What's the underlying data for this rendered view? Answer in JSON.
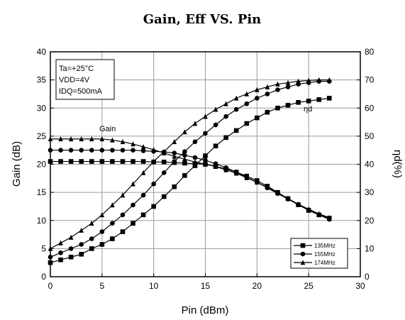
{
  "chart_data": {
    "type": "line",
    "title": "Gain, Eff VS. Pin",
    "xlabel": "Pin (dBm)",
    "ylabel_left": "Gain (dB)",
    "ylabel_right": "ηd(%)",
    "xlim": [
      0,
      30
    ],
    "ylim_left": [
      0,
      40
    ],
    "ylim_right": [
      0,
      80
    ],
    "x_ticks": [
      "0",
      "5",
      "10",
      "15",
      "20",
      "25",
      "30"
    ],
    "y_left_ticks": [
      "0",
      "5",
      "10",
      "15",
      "20",
      "25",
      "30",
      "35",
      "40"
    ],
    "y_right_ticks": [
      "0",
      "10",
      "20",
      "30",
      "40",
      "50",
      "60",
      "70",
      "80"
    ],
    "grid": true,
    "legend_position": "bottom-right",
    "conditions": [
      "Ta=+25°C",
      "VDD=4V",
      "IDQ=500mA"
    ],
    "annotations": {
      "gain": "Gain",
      "eff": "ηd"
    },
    "x": [
      0,
      1,
      2,
      3,
      4,
      5,
      6,
      7,
      8,
      9,
      10,
      11,
      12,
      13,
      14,
      15,
      16,
      17,
      18,
      19,
      20,
      21,
      22,
      23,
      24,
      25,
      26,
      27
    ],
    "series": [
      {
        "name": "135MHz",
        "marker": "square",
        "gain_db": [
          20.5,
          20.5,
          20.5,
          20.5,
          20.5,
          20.5,
          20.5,
          20.5,
          20.5,
          20.5,
          20.4,
          20.4,
          20.3,
          20.2,
          20.1,
          20.0,
          19.6,
          19.2,
          18.6,
          17.9,
          17.1,
          16.1,
          15.0,
          13.9,
          12.8,
          11.8,
          11.0,
          10.4
        ],
        "eff_pct": [
          5,
          6,
          7,
          8,
          10,
          11.5,
          13.5,
          16,
          19,
          22,
          25,
          28.5,
          32,
          36,
          39.5,
          43,
          46.5,
          49.5,
          52,
          54.5,
          56.5,
          58.5,
          60,
          61,
          62,
          62.5,
          63,
          63.5
        ]
      },
      {
        "name": "155MHz",
        "marker": "circle",
        "gain_db": [
          22.5,
          22.5,
          22.5,
          22.5,
          22.5,
          22.5,
          22.5,
          22.5,
          22.5,
          22.4,
          22.3,
          22.2,
          22.0,
          21.6,
          21.2,
          20.7,
          20.1,
          19.4,
          18.6,
          17.7,
          16.8,
          15.8,
          14.8,
          13.8,
          12.8,
          11.9,
          11.0,
          10.2
        ],
        "eff_pct": [
          7,
          8.5,
          10,
          11.5,
          13.5,
          16,
          19,
          22,
          25.5,
          29,
          33,
          37,
          41,
          44.5,
          48,
          51,
          54,
          57,
          59.5,
          61.5,
          63.5,
          65,
          66.5,
          67.5,
          68.5,
          69,
          69.5,
          69.5
        ]
      },
      {
        "name": "174MHz",
        "marker": "triangle",
        "gain_db": [
          24.5,
          24.5,
          24.5,
          24.5,
          24.5,
          24.5,
          24.3,
          24.0,
          23.6,
          23.1,
          22.6,
          22.0,
          21.4,
          20.9,
          20.4,
          20.0,
          19.6,
          19.0,
          18.4,
          17.6,
          16.8,
          15.9,
          14.9,
          13.9,
          12.9,
          12.0,
          11.2,
          10.5
        ],
        "eff_pct": [
          10,
          12,
          14,
          16.5,
          19,
          22,
          25.5,
          29,
          33,
          37,
          41,
          44.5,
          48,
          51.5,
          54.5,
          57,
          59.5,
          61.5,
          63.5,
          65,
          66.5,
          67.5,
          68.5,
          69,
          69.5,
          69.8,
          70,
          70
        ]
      }
    ]
  }
}
